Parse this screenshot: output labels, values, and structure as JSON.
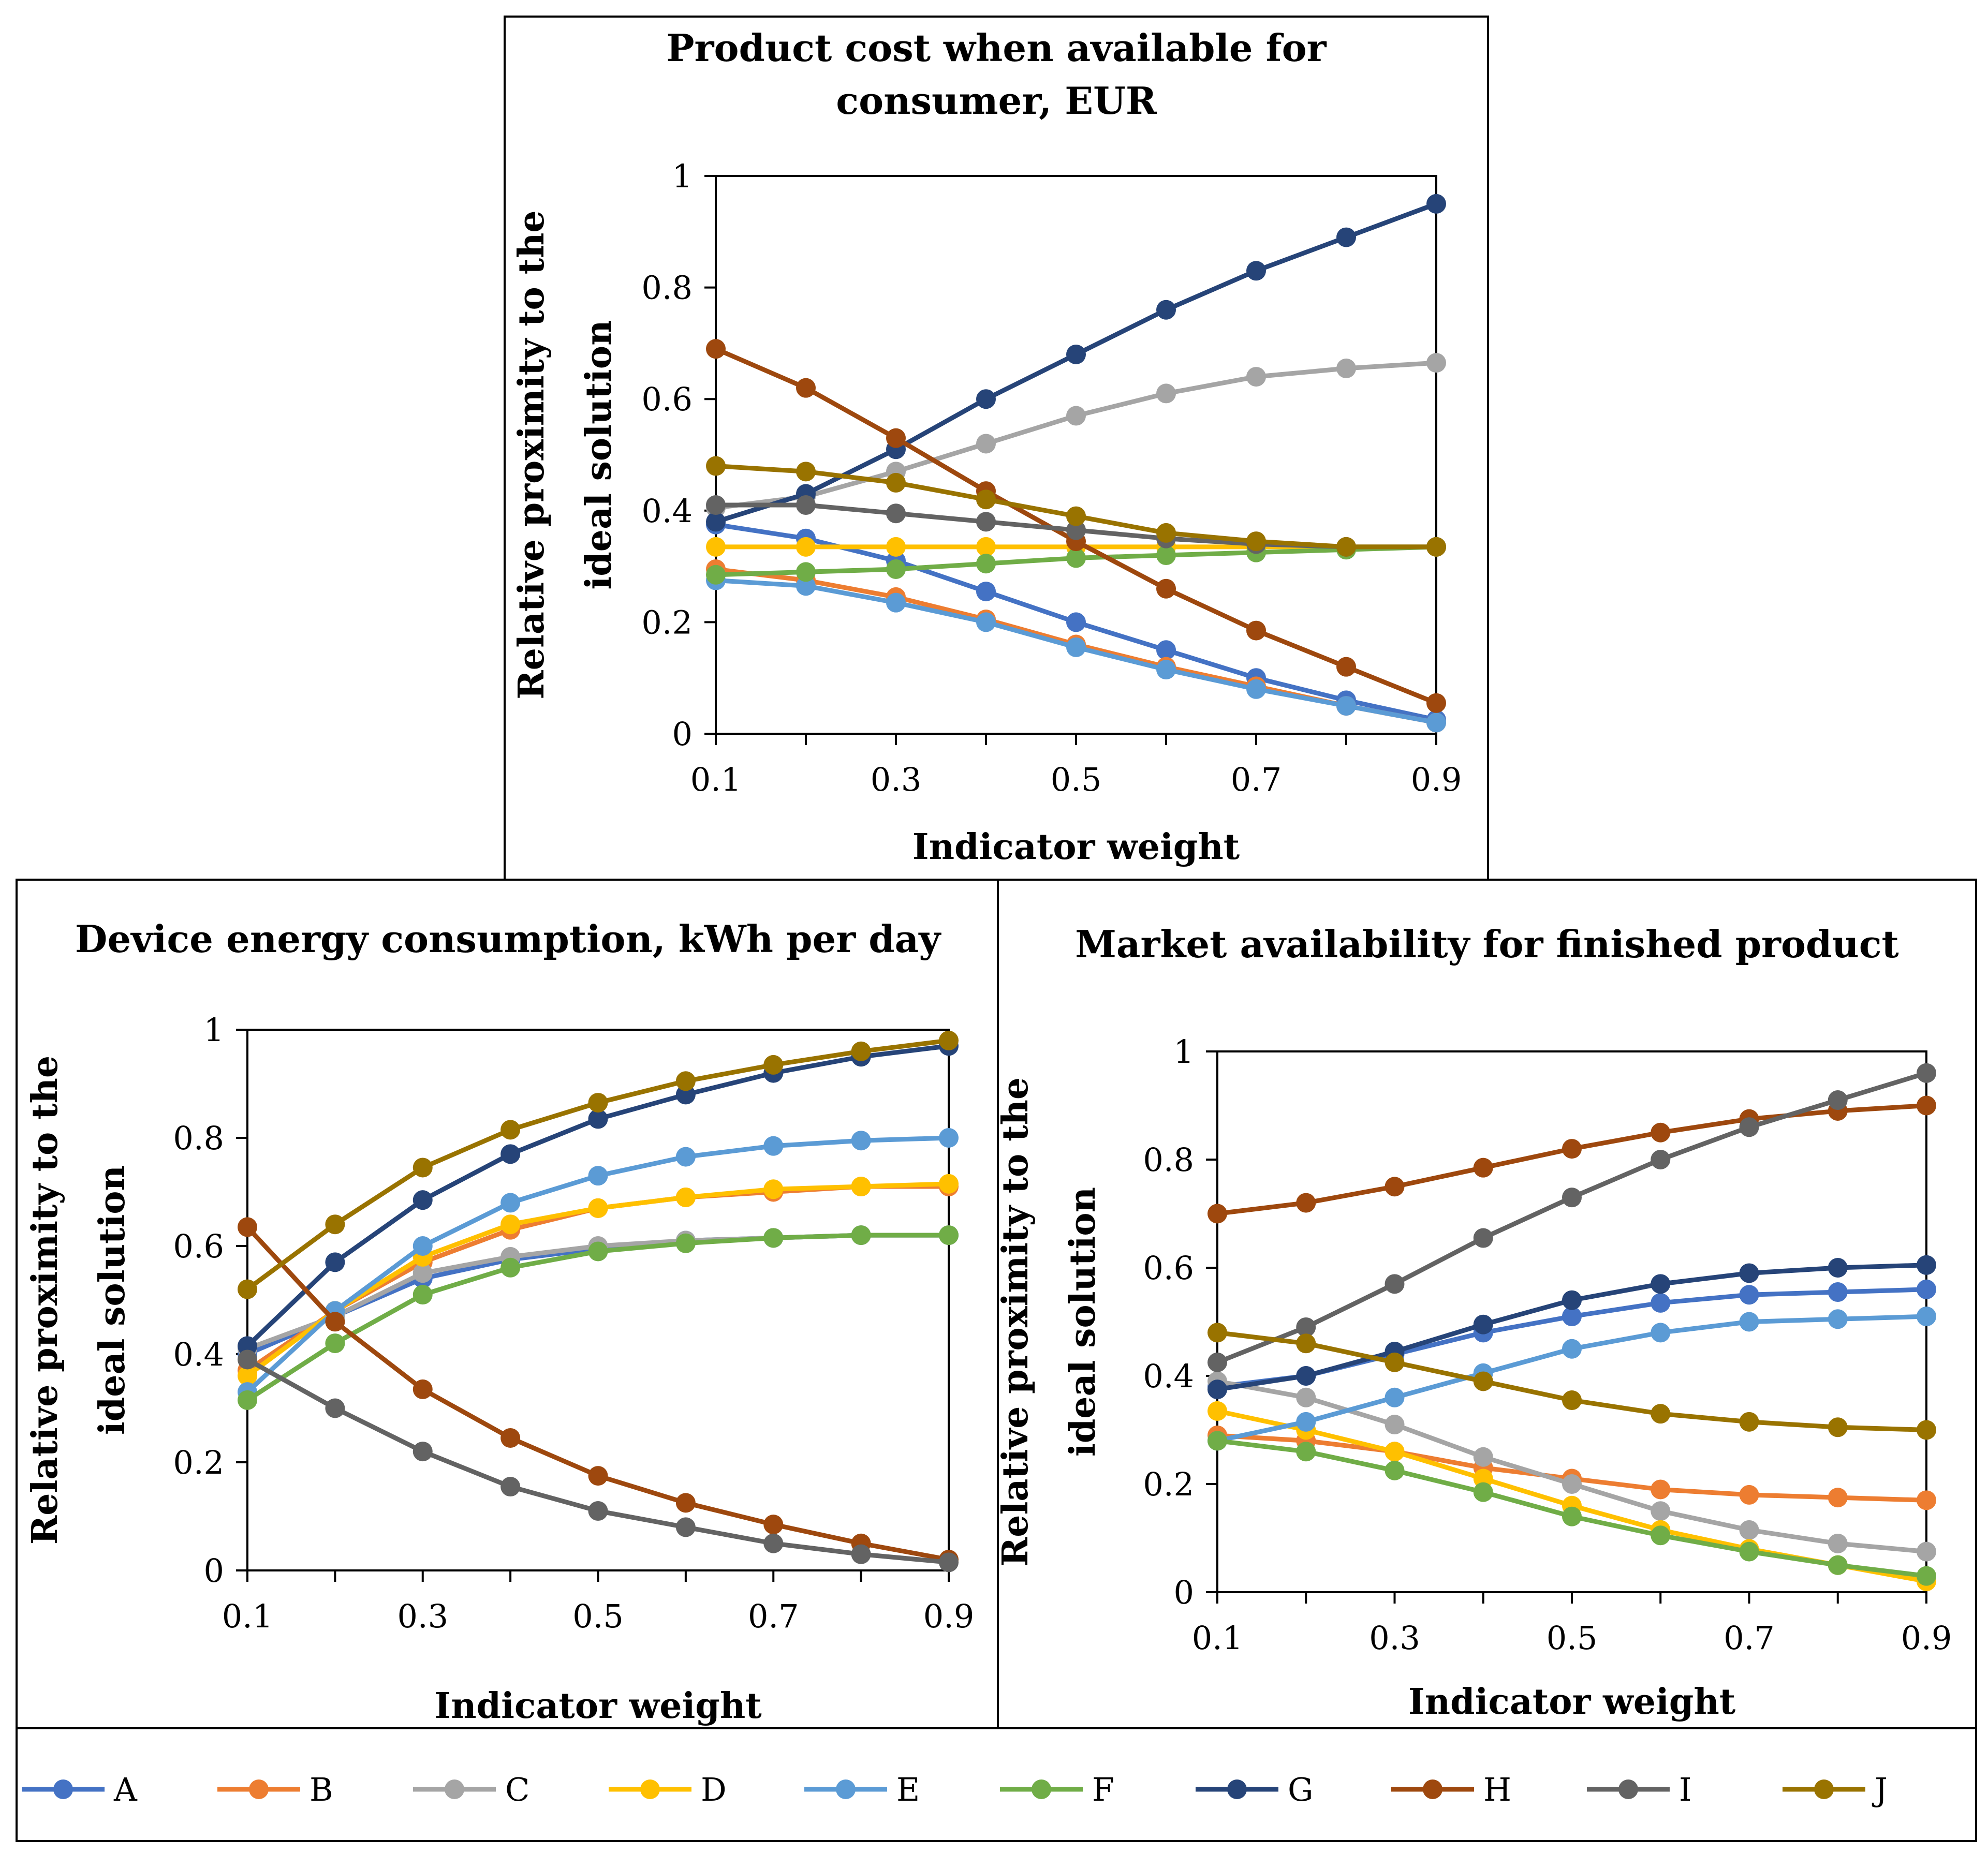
{
  "colors": {
    "A": "#4472C4",
    "B": "#ED7D31",
    "C": "#A5A5A5",
    "D": "#FFC000",
    "E": "#5B9BD5",
    "F": "#70AD47",
    "G": "#264478",
    "H": "#9E480E",
    "I": "#636363",
    "J": "#997300"
  },
  "legend": [
    "A",
    "B",
    "C",
    "D",
    "E",
    "F",
    "G",
    "H",
    "I",
    "J"
  ],
  "chart_data": [
    {
      "type": "line",
      "title_lines": [
        "Product cost when available for",
        "consumer, EUR"
      ],
      "ylabel_lines": [
        "Relative proximity to the",
        "ideal solution"
      ],
      "xlabel": "Indicator weight",
      "x": [
        0.1,
        0.2,
        0.3,
        0.4,
        0.5,
        0.6,
        0.7,
        0.8,
        0.9
      ],
      "xticks": [
        "0.1",
        "0.3",
        "0.5",
        "0.7",
        "0.9"
      ],
      "xtick_values": [
        0.1,
        0.3,
        0.5,
        0.7,
        0.9
      ],
      "yticks": [
        "0",
        "0.2",
        "0.4",
        "0.6",
        "0.8",
        "1"
      ],
      "ytick_values": [
        0,
        0.2,
        0.4,
        0.6,
        0.8,
        1
      ],
      "xlim": [
        0.1,
        0.9
      ],
      "ylim": [
        0,
        1
      ],
      "series": [
        {
          "name": "A",
          "values": [
            0.375,
            0.35,
            0.31,
            0.255,
            0.2,
            0.15,
            0.1,
            0.06,
            0.025
          ]
        },
        {
          "name": "B",
          "values": [
            0.295,
            0.275,
            0.245,
            0.205,
            0.16,
            0.12,
            0.085,
            0.05,
            0.02
          ]
        },
        {
          "name": "C",
          "values": [
            0.405,
            0.425,
            0.47,
            0.52,
            0.57,
            0.61,
            0.64,
            0.655,
            0.665
          ]
        },
        {
          "name": "D",
          "values": [
            0.335,
            0.335,
            0.335,
            0.335,
            0.335,
            0.335,
            0.335,
            0.335,
            0.335
          ]
        },
        {
          "name": "E",
          "values": [
            0.275,
            0.265,
            0.235,
            0.2,
            0.155,
            0.115,
            0.08,
            0.05,
            0.02
          ]
        },
        {
          "name": "F",
          "values": [
            0.285,
            0.29,
            0.295,
            0.305,
            0.315,
            0.32,
            0.325,
            0.33,
            0.335
          ]
        },
        {
          "name": "G",
          "values": [
            0.38,
            0.43,
            0.51,
            0.6,
            0.68,
            0.76,
            0.83,
            0.89,
            0.95
          ]
        },
        {
          "name": "H",
          "values": [
            0.69,
            0.62,
            0.53,
            0.435,
            0.345,
            0.26,
            0.185,
            0.12,
            0.055
          ]
        },
        {
          "name": "I",
          "values": [
            0.41,
            0.41,
            0.395,
            0.38,
            0.365,
            0.35,
            0.34,
            0.335,
            0.335
          ]
        },
        {
          "name": "J",
          "values": [
            0.48,
            0.47,
            0.45,
            0.42,
            0.39,
            0.36,
            0.345,
            0.335,
            0.335
          ]
        }
      ]
    },
    {
      "type": "line",
      "title_lines": [
        "Device energy consumption, kWh per day"
      ],
      "ylabel_lines": [
        "Relative proximity to the",
        "ideal solution"
      ],
      "xlabel": "Indicator weight",
      "x": [
        0.1,
        0.2,
        0.3,
        0.4,
        0.5,
        0.6,
        0.7,
        0.8,
        0.9
      ],
      "xticks": [
        "0.1",
        "0.3",
        "0.5",
        "0.7",
        "0.9"
      ],
      "xtick_values": [
        0.1,
        0.3,
        0.5,
        0.7,
        0.9
      ],
      "yticks": [
        "0",
        "0.2",
        "0.4",
        "0.6",
        "0.8",
        "1"
      ],
      "ytick_values": [
        0,
        0.2,
        0.4,
        0.6,
        0.8,
        1
      ],
      "xlim": [
        0.1,
        0.9
      ],
      "ylim": [
        0,
        1
      ],
      "series": [
        {
          "name": "A",
          "values": [
            0.4,
            0.47,
            0.54,
            0.575,
            0.595,
            0.61,
            0.615,
            0.62,
            0.62
          ]
        },
        {
          "name": "B",
          "values": [
            0.37,
            0.48,
            0.57,
            0.63,
            0.67,
            0.69,
            0.7,
            0.71,
            0.71
          ]
        },
        {
          "name": "C",
          "values": [
            0.41,
            0.47,
            0.55,
            0.58,
            0.6,
            0.61,
            0.615,
            0.62,
            0.62
          ]
        },
        {
          "name": "D",
          "values": [
            0.36,
            0.48,
            0.58,
            0.64,
            0.67,
            0.69,
            0.705,
            0.71,
            0.715
          ]
        },
        {
          "name": "E",
          "values": [
            0.33,
            0.48,
            0.6,
            0.68,
            0.73,
            0.765,
            0.785,
            0.795,
            0.8
          ]
        },
        {
          "name": "F",
          "values": [
            0.315,
            0.42,
            0.51,
            0.56,
            0.59,
            0.605,
            0.615,
            0.62,
            0.62
          ]
        },
        {
          "name": "G",
          "values": [
            0.415,
            0.57,
            0.685,
            0.77,
            0.835,
            0.88,
            0.92,
            0.95,
            0.97
          ]
        },
        {
          "name": "H",
          "values": [
            0.635,
            0.46,
            0.335,
            0.245,
            0.175,
            0.125,
            0.085,
            0.05,
            0.02
          ]
        },
        {
          "name": "I",
          "values": [
            0.39,
            0.3,
            0.22,
            0.155,
            0.11,
            0.08,
            0.05,
            0.03,
            0.015
          ]
        },
        {
          "name": "J",
          "values": [
            0.52,
            0.64,
            0.745,
            0.815,
            0.865,
            0.905,
            0.935,
            0.96,
            0.98
          ]
        }
      ]
    },
    {
      "type": "line",
      "title_lines": [
        "Market availability for finished product"
      ],
      "ylabel_lines": [
        "Relative proximity to the",
        "ideal solution"
      ],
      "xlabel": "Indicator weight",
      "x": [
        0.1,
        0.2,
        0.3,
        0.4,
        0.5,
        0.6,
        0.7,
        0.8,
        0.9
      ],
      "xticks": [
        "0.1",
        "0.3",
        "0.5",
        "0.7",
        "0.9"
      ],
      "xtick_values": [
        0.1,
        0.3,
        0.5,
        0.7,
        0.9
      ],
      "yticks": [
        "0",
        "0.2",
        "0.4",
        "0.6",
        "0.8",
        "1"
      ],
      "ytick_values": [
        0,
        0.2,
        0.4,
        0.6,
        0.8,
        1
      ],
      "xlim": [
        0.1,
        0.9
      ],
      "ylim": [
        0,
        1
      ],
      "series": [
        {
          "name": "A",
          "values": [
            0.38,
            0.4,
            0.44,
            0.48,
            0.51,
            0.535,
            0.55,
            0.555,
            0.56
          ]
        },
        {
          "name": "B",
          "values": [
            0.29,
            0.28,
            0.26,
            0.23,
            0.21,
            0.19,
            0.18,
            0.175,
            0.17
          ]
        },
        {
          "name": "C",
          "values": [
            0.39,
            0.36,
            0.31,
            0.25,
            0.2,
            0.15,
            0.115,
            0.09,
            0.075
          ]
        },
        {
          "name": "D",
          "values": [
            0.335,
            0.3,
            0.26,
            0.21,
            0.16,
            0.115,
            0.08,
            0.05,
            0.02
          ]
        },
        {
          "name": "E",
          "values": [
            0.28,
            0.315,
            0.36,
            0.405,
            0.45,
            0.48,
            0.5,
            0.505,
            0.51
          ]
        },
        {
          "name": "F",
          "values": [
            0.28,
            0.26,
            0.225,
            0.185,
            0.14,
            0.105,
            0.075,
            0.05,
            0.03
          ]
        },
        {
          "name": "G",
          "values": [
            0.375,
            0.4,
            0.445,
            0.495,
            0.54,
            0.57,
            0.59,
            0.6,
            0.605
          ]
        },
        {
          "name": "H",
          "values": [
            0.7,
            0.72,
            0.75,
            0.785,
            0.82,
            0.85,
            0.875,
            0.89,
            0.9
          ]
        },
        {
          "name": "I",
          "values": [
            0.425,
            0.49,
            0.57,
            0.655,
            0.73,
            0.8,
            0.86,
            0.91,
            0.96
          ]
        },
        {
          "name": "J",
          "values": [
            0.48,
            0.46,
            0.425,
            0.39,
            0.355,
            0.33,
            0.315,
            0.305,
            0.3
          ]
        }
      ]
    }
  ]
}
